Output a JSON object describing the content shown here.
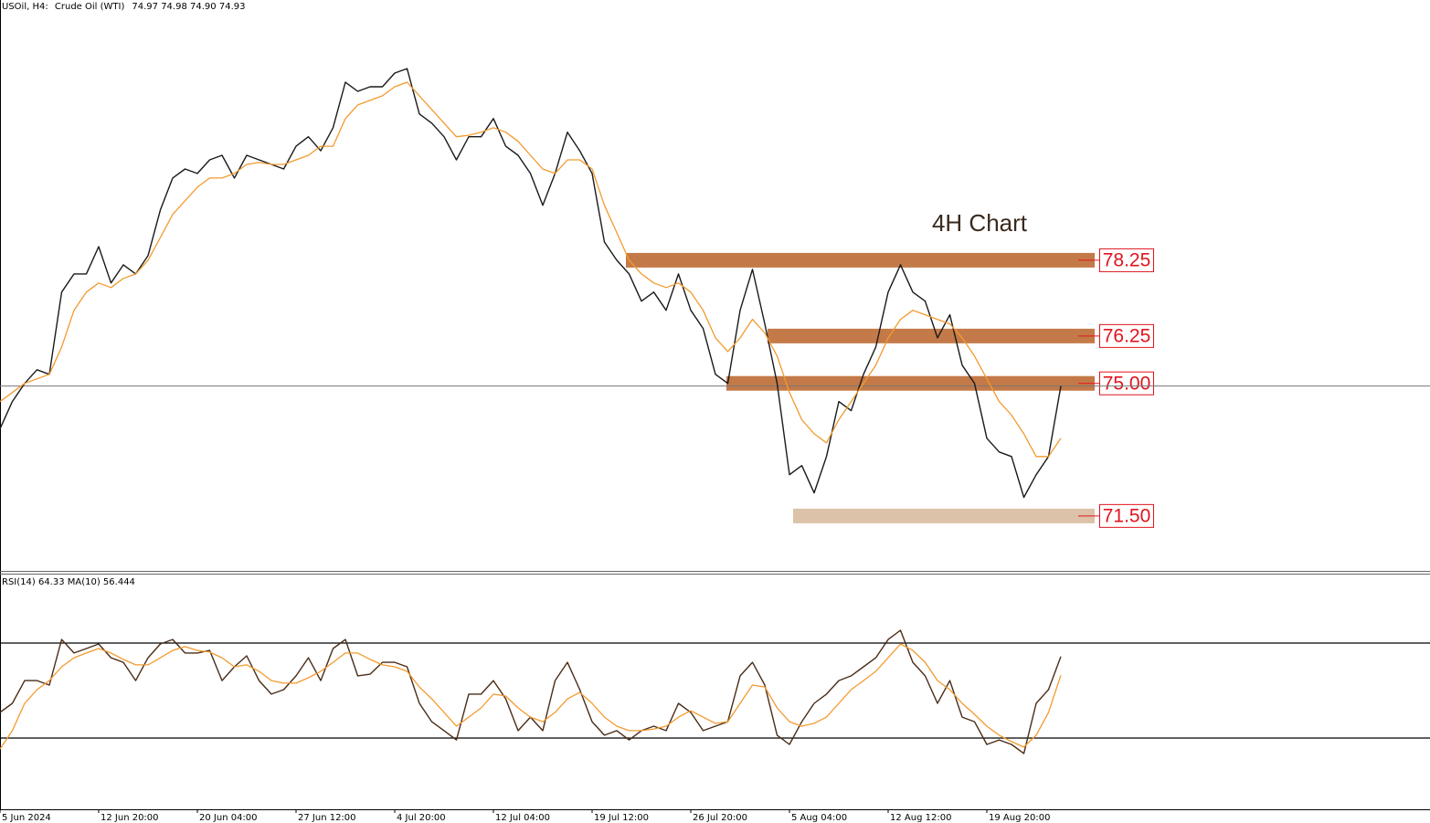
{
  "chart_data": [
    {
      "type": "line",
      "symbol": "USOil, H4:",
      "description": "Crude Oil (WTI)",
      "ohlc": [
        74.97,
        74.98,
        {
          "value": 74.9,
          "label": "74.90"
        },
        74.93
      ],
      "annotation": "4H Chart",
      "categories": [
        "5 Jun 2024",
        null,
        null,
        null,
        null,
        null,
        null,
        null,
        "12 Jun 20:00",
        null,
        null,
        null,
        null,
        null,
        null,
        null,
        "20 Jun 04:00",
        null,
        null,
        null,
        null,
        null,
        null,
        null,
        "27 Jun 12:00",
        null,
        null,
        null,
        null,
        null,
        null,
        null,
        "4 Jul 20:00",
        null,
        null,
        null,
        null,
        null,
        null,
        null,
        "12 Jul 04:00",
        null,
        null,
        null,
        null,
        null,
        null,
        null,
        "19 Jul 12:00",
        null,
        null,
        null,
        null,
        null,
        null,
        null,
        "26 Jul 20:00",
        null,
        null,
        null,
        null,
        null,
        null,
        null,
        "5 Aug 04:00",
        null,
        null,
        null,
        null,
        null,
        null,
        null,
        "12 Aug 12:00",
        null,
        null,
        null,
        null,
        null,
        null,
        null,
        "19 Aug 20:00",
        null,
        null,
        null,
        null,
        null,
        null
      ],
      "series": [
        {
          "color": "#1a1a1a",
          "values": [
            73.8,
            74.52,
            75.0,
            75.36,
            75.24,
            77.41,
            77.89,
            77.89,
            78.61,
            77.65,
            78.13,
            77.89,
            78.37,
            79.58,
            80.42,
            80.66,
            80.54,
            80.9,
            81.02,
            80.42,
            81.02,
            80.9,
            80.78,
            80.66,
            81.26,
            81.51,
            81.14,
            81.75,
            82.95,
            82.71,
            82.83,
            82.83,
            83.19,
            83.31,
            82.11,
            81.87,
            81.51,
            80.9,
            81.51,
            81.51,
            81.99,
            81.26,
            81.02,
            80.54,
            79.7,
            80.54,
            81.63,
            81.14,
            80.54,
            78.73,
            78.25,
            77.89,
            77.17,
            77.41,
            76.93,
            77.89,
            76.93,
            76.45,
            75.24,
            75.0,
            76.93,
            78.01,
            76.57,
            75.0,
            72.59,
            72.83,
            72.11,
            73.07,
            74.52,
            74.28,
            75.24,
            75.96,
            77.41,
            78.13,
            77.41,
            77.17,
            76.2,
            76.81,
            75.48,
            75.0,
            73.55,
            73.19,
            73.07,
            71.99,
            72.59,
            73.07,
            74.93
          ]
        },
        {
          "color": "#f39a2e",
          "values": [
            74.52,
            74.76,
            75.0,
            75.12,
            75.24,
            75.96,
            76.93,
            77.41,
            77.65,
            77.53,
            77.77,
            77.89,
            78.25,
            78.85,
            79.46,
            79.82,
            80.18,
            80.42,
            80.42,
            80.54,
            80.78,
            80.83,
            80.78,
            80.78,
            80.9,
            81.02,
            81.26,
            81.26,
            81.99,
            82.35,
            82.47,
            82.59,
            82.83,
            82.95,
            82.59,
            82.23,
            81.87,
            81.51,
            81.55,
            81.63,
            81.75,
            81.63,
            81.39,
            81.02,
            80.66,
            80.54,
            80.9,
            80.9,
            80.66,
            79.7,
            78.98,
            78.25,
            77.89,
            77.65,
            77.53,
            77.65,
            77.41,
            76.93,
            76.2,
            75.84,
            76.2,
            76.69,
            76.33,
            75.72,
            74.76,
            74.04,
            73.67,
            73.43,
            74.04,
            74.52,
            75.0,
            75.48,
            76.2,
            76.69,
            76.93,
            76.81,
            76.69,
            76.57,
            76.2,
            75.72,
            75.12,
            74.52,
            74.16,
            73.67,
            73.07,
            73.07,
            73.55
          ]
        }
      ],
      "levels": [
        78.25,
        76.25,
        {
          "value": 75,
          "label": "75.00"
        },
        {
          "value": 71.5,
          "label": "71.50"
        }
      ],
      "level_colors": [
        "#c47a48",
        "#c47a48",
        "#c47a48",
        "#dbc2a8"
      ],
      "ylim": [
        70.05,
        85.12
      ]
    },
    {
      "type": "line",
      "title": "RSI(14) 64.33 MA(10) 56.444",
      "series": [
        {
          "color": "#4a2c17",
          "values": [
            40.8,
            44.6,
            54.2,
            54.2,
            52.3,
            71.5,
            65.8,
            67.7,
            69.6,
            63.8,
            61.9,
            54.2,
            63.8,
            69.6,
            71.5,
            65.8,
            65.8,
            66.9,
            54.2,
            60.0,
            64.6,
            54.2,
            48.5,
            50.4,
            56.2,
            63.8,
            54.2,
            67.7,
            71.5,
            56.2,
            56.9,
            61.9,
            61.9,
            60.0,
            44.6,
            36.9,
            33.1,
            29.2,
            48.5,
            48.5,
            54.2,
            46.5,
            33.1,
            38.8,
            33.1,
            54.2,
            61.9,
            50.4,
            36.9,
            31.2,
            33.1,
            29.2,
            33.1,
            35.0,
            33.1,
            44.6,
            40.8,
            33.1,
            35.0,
            36.9,
            56.2,
            61.9,
            52.3,
            31.2,
            27.3,
            36.9,
            44.6,
            48.5,
            54.2,
            56.2,
            60.0,
            63.8,
            71.5,
            75.4,
            61.9,
            56.2,
            44.6,
            54.2,
            38.8,
            36.9,
            27.3,
            29.2,
            27.3,
            23.5,
            44.6,
            50.4,
            64.33
          ]
        },
        {
          "color": "#f39a2e",
          "values": [
            25.4,
            33.1,
            44.6,
            50.4,
            54.2,
            60.0,
            63.8,
            65.8,
            67.7,
            65.8,
            63.1,
            60.8,
            60.8,
            63.8,
            66.9,
            68.5,
            66.9,
            66.2,
            63.8,
            60.0,
            60.8,
            58.1,
            54.2,
            53.1,
            53.1,
            55.4,
            58.1,
            61.9,
            65.8,
            65.8,
            63.1,
            60.8,
            60.0,
            58.1,
            51.5,
            46.5,
            40.8,
            35.0,
            38.8,
            42.7,
            48.5,
            47.7,
            42.7,
            38.8,
            36.9,
            40.8,
            46.5,
            49.2,
            44.6,
            38.8,
            35.0,
            33.1,
            33.1,
            33.8,
            35.0,
            38.8,
            41.5,
            38.8,
            36.2,
            36.9,
            44.6,
            52.3,
            51.5,
            42.7,
            36.9,
            35.0,
            36.2,
            38.8,
            44.6,
            50.4,
            54.2,
            58.1,
            63.8,
            69.6,
            66.9,
            61.9,
            54.2,
            50.4,
            44.6,
            40.0,
            35.0,
            31.2,
            28.5,
            26.2,
            31.2,
            40.8,
            56.444
          ]
        }
      ],
      "levels": [
        30,
        70
      ],
      "ylim": [
        0,
        100
      ]
    }
  ]
}
